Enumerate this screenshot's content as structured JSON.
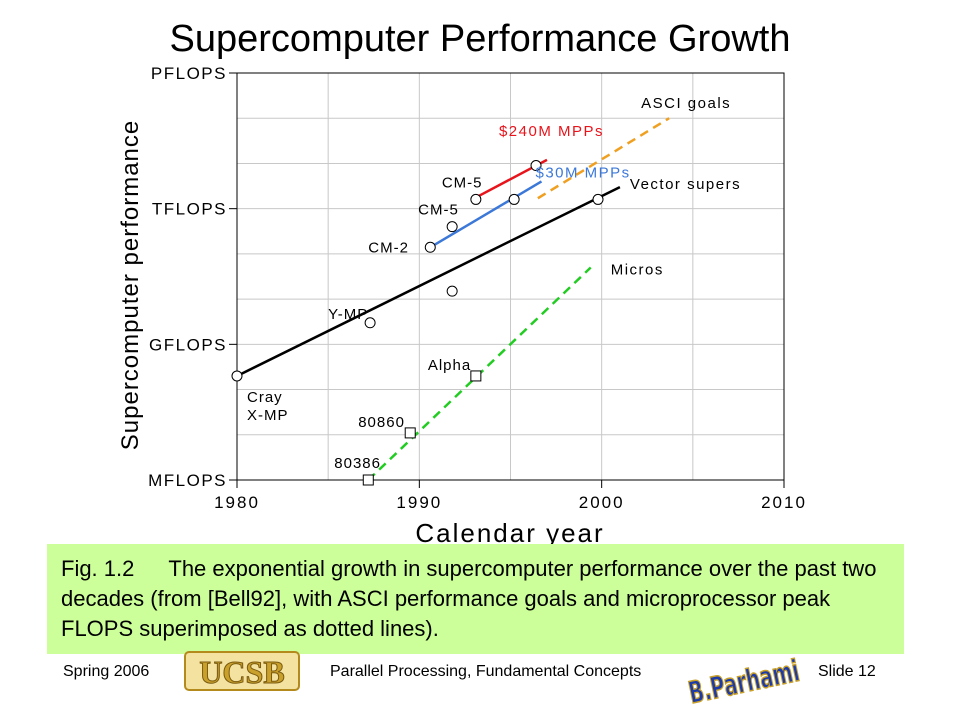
{
  "slide": {
    "title": "Supercomputer Performance Growth",
    "caption_fig": "Fig. 1.2",
    "caption_text": "The exponential growth in supercomputer performance over the past two decades (from [Bell92], with ASCI performance goals and microprocessor peak FLOPS superimposed as dotted lines).",
    "footer_left": "Spring 2006",
    "footer_center": "Parallel Processing, Fundamental Concepts",
    "footer_right": "Slide 12",
    "logo_left_text": "UCSB",
    "logo_right_text": "B.Parhami"
  },
  "colors": {
    "caption_bg": "#ccff99",
    "mpp_240m": "#e8141c",
    "mpp_30m": "#3c78d8",
    "asci": "#f0a020",
    "micros": "#22cc22",
    "vector": "#000000",
    "logo_gold": "#c8a02a",
    "logo_blue": "#1c3aa8"
  },
  "chart_data": {
    "type": "line",
    "title": "",
    "xlabel": "Calendar year",
    "ylabel": "Supercomputer performance",
    "x_scale": "linear",
    "y_scale": "log",
    "xlim": [
      1980,
      2010
    ],
    "x_ticks": [
      1980,
      1990,
      2000,
      2010
    ],
    "x_tick_labels": [
      "1980",
      "1990",
      "2000",
      "2010"
    ],
    "ylim_flops": [
      1000000.0,
      1000000000000000.0
    ],
    "y_ticks_flops": [
      1000000.0,
      1000000000.0,
      1000000000000.0,
      1000000000000000.0
    ],
    "y_tick_labels": [
      "MFLOPS",
      "GFLOPS",
      "TFLOPS",
      "PFLOPS"
    ],
    "grid": true,
    "series": [
      {
        "name": "Vector supers",
        "key": "vector",
        "style": "solid",
        "points": [
          [
            1980,
            200000000.0
          ],
          [
            2001,
            3000000000000.0
          ]
        ],
        "markers": [
          {
            "x": 1980,
            "y": 200000000.0,
            "shape": "circle",
            "label": "Cray X-MP"
          },
          {
            "x": 1987.3,
            "y": 3000000000.0,
            "shape": "circle",
            "label": "Y-MP"
          },
          {
            "x": 1991.8,
            "y": 15000000000.0,
            "shape": "circle",
            "label": ""
          },
          {
            "x": 1999.8,
            "y": 1600000000000.0,
            "shape": "circle",
            "label": ""
          }
        ]
      },
      {
        "name": "$240M MPPs",
        "key": "mpp_240m",
        "style": "solid",
        "points": [
          [
            1992.9,
            1600000000000.0
          ],
          [
            1997,
            12000000000000.0
          ]
        ],
        "markers": [
          {
            "x": 1993.1,
            "y": 1600000000000.0,
            "shape": "circle",
            "label": "CM-5"
          },
          {
            "x": 1996.4,
            "y": 9000000000000.0,
            "shape": "circle",
            "label": ""
          }
        ]
      },
      {
        "name": "$30M MPPs",
        "key": "mpp_30m",
        "style": "solid",
        "points": [
          [
            1990.6,
            140000000000.0
          ],
          [
            1996.7,
            4000000000000.0
          ]
        ],
        "markers": [
          {
            "x": 1990.6,
            "y": 140000000000.0,
            "shape": "circle",
            "label": "CM-2"
          },
          {
            "x": 1991.8,
            "y": 400000000000.0,
            "shape": "circle",
            "label": "CM-5"
          },
          {
            "x": 1995.2,
            "y": 1600000000000.0,
            "shape": "circle",
            "label": ""
          }
        ]
      },
      {
        "name": "ASCI goals",
        "key": "asci",
        "style": "dashed",
        "points": [
          [
            1996.5,
            1700000000000.0
          ],
          [
            2003.7,
            100000000000000.0
          ]
        ],
        "markers": []
      },
      {
        "name": "Micros",
        "key": "micros",
        "style": "dashed",
        "points": [
          [
            1987.2,
            1000000.0
          ],
          [
            1999.4,
            50000000000.0
          ]
        ],
        "markers": [
          {
            "x": 1987.2,
            "y": 1000000.0,
            "shape": "square",
            "label": "80386"
          },
          {
            "x": 1989.5,
            "y": 11000000.0,
            "shape": "square",
            "label": "80860"
          },
          {
            "x": 1993.1,
            "y": 200000000.0,
            "shape": "square",
            "label": "Alpha"
          }
        ]
      }
    ]
  }
}
